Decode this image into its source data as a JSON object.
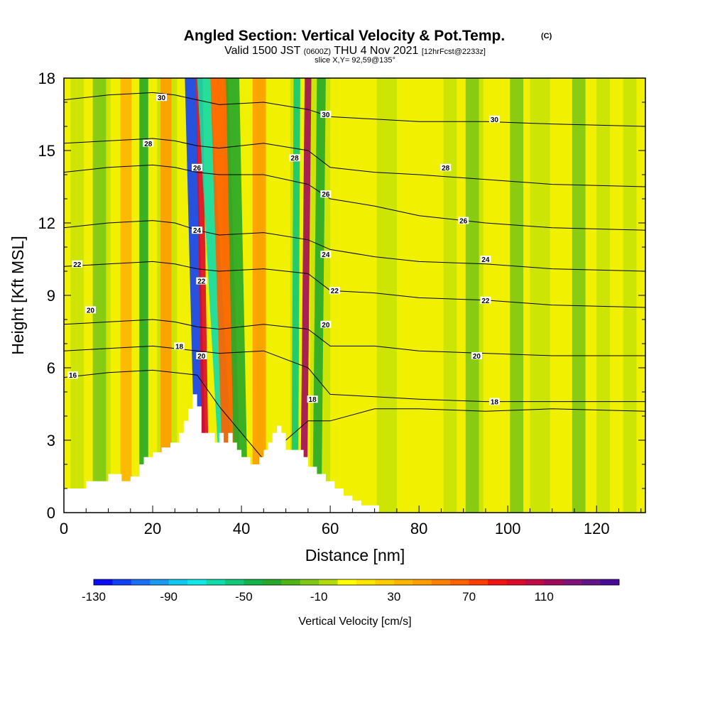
{
  "chart_data": {
    "type": "heatmap",
    "title": "Angled Section: Vertical Velocity & Pot.Temp.",
    "title_mark": "(C)",
    "subtitle_parts": [
      "Valid 1500 JST",
      "(0600Z)",
      "THU 4 Nov 2021",
      "[12hrFcst@2233z]"
    ],
    "slice_label": "slice X,Y= 92,59@135°",
    "xlabel": "Distance [nm]",
    "ylabel": "Height [Kft MSL]",
    "xlim": [
      0,
      131
    ],
    "ylim": [
      0,
      18
    ],
    "x_ticks": [
      0,
      20,
      40,
      60,
      80,
      100,
      120
    ],
    "y_ticks": [
      0,
      3,
      6,
      9,
      12,
      15,
      18
    ],
    "grid": false,
    "colorbar": {
      "label": "Vertical Velocity [cm/s]",
      "min": -130,
      "max": 150,
      "step": 10,
      "tick_values": [
        -130,
        -90,
        -50,
        -10,
        30,
        70,
        110
      ],
      "colors": [
        "#0a0cf5",
        "#1040f5",
        "#1a6ef5",
        "#1a9af0",
        "#10c8f0",
        "#10e8e8",
        "#10dcaa",
        "#10c878",
        "#10b44a",
        "#28a828",
        "#50b414",
        "#80c814",
        "#b0dc0a",
        "#ffff00",
        "#ffe600",
        "#ffcc00",
        "#ffb400",
        "#ff9c00",
        "#ff8000",
        "#ff6000",
        "#ff3c00",
        "#f01414",
        "#dc0a28",
        "#c00a46",
        "#a00a5a",
        "#80107a",
        "#601486",
        "#460a96"
      ]
    },
    "theta_contours": {
      "units": "C",
      "levels": [
        {
          "value": 16,
          "heights": [
            5.6,
            5.8,
            5.9,
            5.8,
            5.7,
            4.4,
            2.2,
            3.8,
            3.8,
            4.3,
            4.3,
            4.2,
            4.3,
            4.2
          ]
        },
        {
          "value": 18,
          "heights": [
            6.7,
            6.8,
            6.9,
            6.8,
            6.7,
            6.6,
            6.7,
            6.0,
            4.9,
            4.8,
            4.7,
            4.6,
            4.6,
            4.6
          ]
        },
        {
          "value": 20,
          "heights": [
            7.8,
            7.9,
            8.0,
            7.9,
            7.7,
            7.6,
            7.8,
            7.6,
            6.9,
            6.9,
            6.7,
            6.6,
            6.5,
            6.5
          ]
        },
        {
          "value": 22,
          "heights": [
            10.2,
            10.3,
            10.4,
            10.3,
            10.1,
            10.0,
            10.1,
            9.9,
            9.2,
            9.1,
            8.9,
            8.8,
            8.6,
            8.5
          ]
        },
        {
          "value": 24,
          "heights": [
            11.8,
            12.0,
            12.1,
            12.0,
            11.7,
            11.5,
            11.6,
            11.3,
            10.9,
            10.6,
            10.4,
            10.3,
            10.1,
            10.0
          ]
        },
        {
          "value": 26,
          "heights": [
            14.1,
            14.3,
            14.4,
            14.3,
            14.1,
            14.0,
            14.0,
            13.6,
            13.0,
            12.7,
            12.3,
            12.0,
            11.8,
            11.7
          ]
        },
        {
          "value": 28,
          "heights": [
            15.3,
            15.4,
            15.5,
            15.4,
            15.2,
            15.1,
            15.3,
            15.0,
            14.3,
            14.1,
            14.0,
            13.8,
            13.6,
            13.5
          ]
        },
        {
          "value": 30,
          "heights": [
            17.1,
            17.3,
            17.4,
            17.3,
            17.1,
            16.9,
            17.0,
            16.7,
            16.4,
            16.3,
            16.2,
            16.2,
            16.1,
            16.0
          ]
        }
      ],
      "x": [
        0,
        10,
        20,
        25,
        30,
        35,
        45,
        55,
        60,
        70,
        80,
        95,
        110,
        131
      ],
      "labels": [
        {
          "text": "30",
          "x": 22,
          "y": 17.2
        },
        {
          "text": "30",
          "x": 59,
          "y": 16.5
        },
        {
          "text": "30",
          "x": 97,
          "y": 16.3
        },
        {
          "text": "28",
          "x": 19,
          "y": 15.3
        },
        {
          "text": "28",
          "x": 52,
          "y": 14.7
        },
        {
          "text": "28",
          "x": 86,
          "y": 14.3
        },
        {
          "text": "26",
          "x": 30,
          "y": 14.3
        },
        {
          "text": "26",
          "x": 59,
          "y": 13.2
        },
        {
          "text": "26",
          "x": 90,
          "y": 12.1
        },
        {
          "text": "24",
          "x": 30,
          "y": 11.7
        },
        {
          "text": "24",
          "x": 59,
          "y": 10.7
        },
        {
          "text": "24",
          "x": 95,
          "y": 10.5
        },
        {
          "text": "22",
          "x": 3,
          "y": 10.3
        },
        {
          "text": "22",
          "x": 31,
          "y": 9.6
        },
        {
          "text": "22",
          "x": 61,
          "y": 9.2
        },
        {
          "text": "22",
          "x": 95,
          "y": 8.8
        },
        {
          "text": "20",
          "x": 6,
          "y": 8.4
        },
        {
          "text": "20",
          "x": 59,
          "y": 7.8
        },
        {
          "text": "20",
          "x": 93,
          "y": 6.5
        },
        {
          "text": "18",
          "x": 26,
          "y": 6.9
        },
        {
          "text": "20",
          "x": 31,
          "y": 6.5
        },
        {
          "text": "18",
          "x": 56,
          "y": 4.7
        },
        {
          "text": "18",
          "x": 97,
          "y": 4.6
        },
        {
          "text": "16",
          "x": 2,
          "y": 5.7
        }
      ]
    },
    "terrain": {
      "x": [
        0,
        5,
        5,
        10,
        10,
        13,
        13,
        15,
        15,
        17,
        17,
        18,
        18,
        20,
        20,
        22,
        22,
        24,
        24,
        26,
        26,
        27,
        27,
        28,
        28,
        29,
        29,
        30,
        30,
        31,
        31,
        34,
        34,
        35,
        35,
        36,
        36,
        37,
        37,
        38,
        38,
        39,
        39,
        40,
        40,
        42,
        42,
        44,
        44,
        45,
        45,
        46,
        46,
        47,
        47,
        48,
        48,
        49,
        49,
        50,
        50,
        54,
        54,
        55,
        55,
        57,
        57,
        59,
        59,
        61,
        61,
        63,
        63,
        65,
        65,
        67,
        67,
        71,
        71,
        131
      ],
      "y": [
        1.0,
        1.0,
        1.3,
        1.3,
        1.6,
        1.6,
        1.3,
        1.3,
        1.5,
        1.5,
        2.0,
        2.0,
        2.3,
        2.3,
        2.5,
        2.5,
        2.7,
        2.7,
        2.9,
        2.9,
        3.3,
        3.3,
        3.8,
        3.8,
        4.3,
        4.3,
        4.9,
        4.9,
        4.4,
        4.4,
        3.3,
        3.3,
        2.9,
        2.9,
        3.3,
        3.3,
        2.9,
        2.9,
        3.3,
        3.3,
        2.9,
        2.9,
        2.6,
        2.6,
        2.3,
        2.3,
        2.0,
        2.0,
        2.3,
        2.3,
        2.6,
        2.6,
        2.9,
        2.9,
        3.3,
        3.3,
        3.6,
        3.6,
        3.3,
        3.3,
        2.6,
        2.6,
        2.3,
        2.3,
        1.9,
        1.9,
        1.6,
        1.6,
        1.3,
        1.3,
        1.0,
        1.0,
        0.7,
        0.7,
        0.5,
        0.5,
        0.3,
        0.3,
        0.0,
        0.0
      ]
    },
    "updraft_bands": [
      {
        "x_bottom": 31,
        "x_top": 28.5,
        "value": -120,
        "width": 2.5
      },
      {
        "x_bottom": 32,
        "x_top": 30.5,
        "value": 90,
        "width": 1.5
      },
      {
        "x_bottom": 37,
        "x_top": 31.5,
        "value": -70,
        "width": 3
      },
      {
        "x_bottom": 38,
        "x_top": 35,
        "value": 60,
        "width": 4
      },
      {
        "x_bottom": 40,
        "x_top": 38,
        "value": -40,
        "width": 3
      },
      {
        "x_bottom": 54,
        "x_top": 55,
        "value": 110,
        "width": 1.5
      },
      {
        "x_bottom": 52,
        "x_top": 52.5,
        "value": -60,
        "width": 1.5
      },
      {
        "x_bottom": 57,
        "x_top": 58,
        "value": -40,
        "width": 2
      },
      {
        "x_bottom": 18,
        "x_top": 18,
        "value": -40,
        "width": 2
      },
      {
        "x_bottom": 23,
        "x_top": 23,
        "value": 40,
        "width": 2.5
      },
      {
        "x_bottom": 14,
        "x_top": 14,
        "value": 30,
        "width": 2.5
      },
      {
        "x_bottom": 44,
        "x_top": 44,
        "value": 40,
        "width": 3
      },
      {
        "x_bottom": 8,
        "x_top": 8,
        "value": -20,
        "width": 3
      },
      {
        "x_bottom": 92,
        "x_top": 92,
        "value": -20,
        "width": 3
      },
      {
        "x_bottom": 102,
        "x_top": 102,
        "value": -20,
        "width": 3
      },
      {
        "x_bottom": 116,
        "x_top": 116,
        "value": -20,
        "width": 3
      }
    ]
  }
}
